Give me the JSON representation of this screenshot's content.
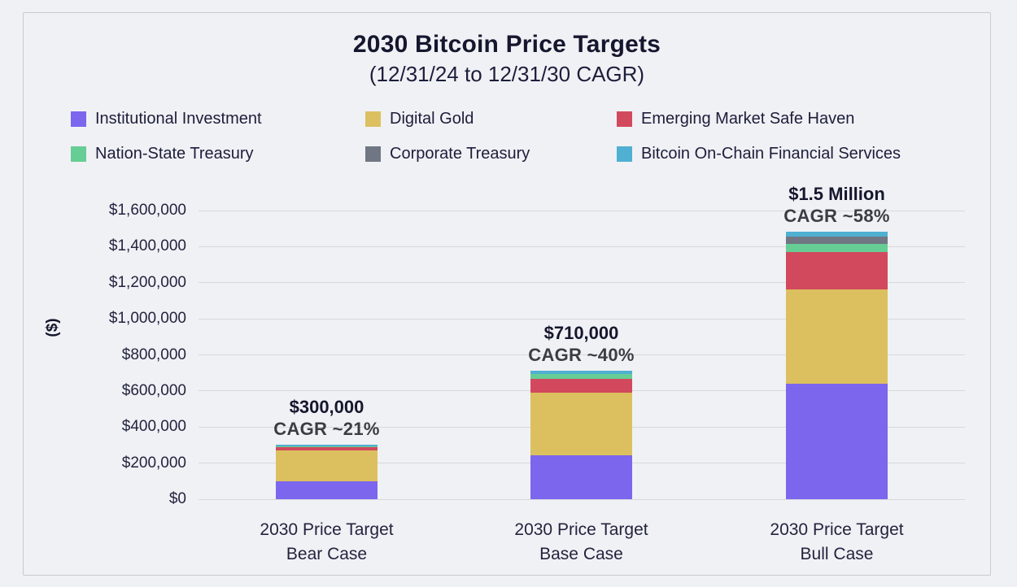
{
  "header": {
    "title": "2030 Bitcoin Price Targets",
    "subtitle": "(12/31/24 to 12/31/30 CAGR)"
  },
  "colors": {
    "background": "#f0f1f5",
    "panel_border": "#c7cbd1",
    "gridline": "#d6d8dc",
    "text_navy": "#15172e"
  },
  "chart_data": {
    "type": "bar",
    "stacked": true,
    "title": "2030 Bitcoin Price Targets",
    "subtitle": "(12/31/24 to 12/31/30 CAGR)",
    "ylabel": "($)",
    "ylim": [
      0,
      1600000
    ],
    "ytick_interval": 200000,
    "ytick_labels": [
      "$0",
      "$200,000",
      "$400,000",
      "$600,000",
      "$800,000",
      "$1,000,000",
      "$1,200,000",
      "$1,400,000",
      "$1,600,000"
    ],
    "grid": "horizontal",
    "legend_position": "top",
    "categories": [
      {
        "line1": "2030 Price Target",
        "line2": "Bear Case"
      },
      {
        "line1": "2030 Price Target",
        "line2": "Base Case"
      },
      {
        "line1": "2030 Price Target",
        "line2": "Bull Case"
      }
    ],
    "series": [
      {
        "name": "Institutional Investment",
        "color": "#7c66ee",
        "values": [
          100000,
          245000,
          640000
        ]
      },
      {
        "name": "Digital Gold",
        "color": "#dcc05f",
        "values": [
          172000,
          345000,
          525000
        ]
      },
      {
        "name": "Emerging Market Safe Haven",
        "color": "#d2495e",
        "values": [
          17000,
          78000,
          205000
        ]
      },
      {
        "name": "Nation-State Treasury",
        "color": "#66ce94",
        "values": [
          2000,
          25000,
          45000
        ]
      },
      {
        "name": "Corporate Treasury",
        "color": "#707684",
        "values": [
          1000,
          1000,
          40000
        ]
      },
      {
        "name": "Bitcoin On-Chain Financial Services",
        "color": "#4fb0d2",
        "values": [
          8000,
          16000,
          27000
        ]
      }
    ],
    "totals_labeled": [
      "$300,000",
      "$710,000",
      "$1.5 Million"
    ],
    "annotations": [
      {
        "price": "$300,000",
        "cagr": "CAGR ~21%"
      },
      {
        "price": "$710,000",
        "cagr": "CAGR ~40%"
      },
      {
        "price": "$1.5 Million",
        "cagr": "CAGR ~58%"
      }
    ]
  }
}
